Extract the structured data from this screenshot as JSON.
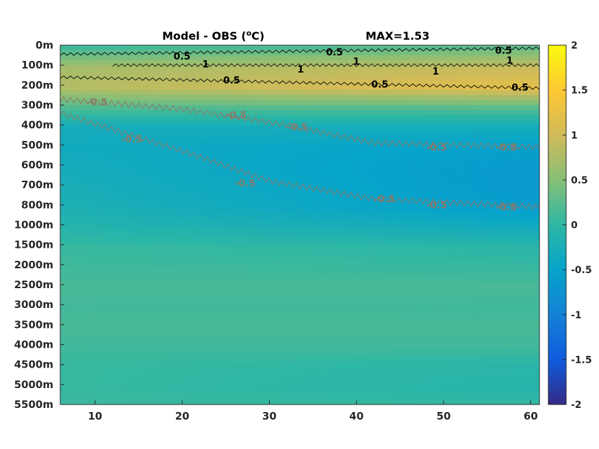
{
  "chart_data": {
    "type": "heatmap",
    "title": "Model - OBS (",
    "title_sup": "o",
    "title_unit": "C)",
    "max_label": "MAX=1.53",
    "xlabel": "",
    "ylabel": "",
    "x_ticks": [
      10,
      20,
      30,
      40,
      50,
      60
    ],
    "x_tick_labels": [
      "10",
      "20",
      "30",
      "40",
      "50",
      "60"
    ],
    "xlim": [
      6,
      61
    ],
    "y_tick_labels": [
      "0m",
      "100m",
      "200m",
      "300m",
      "400m",
      "500m",
      "600m",
      "700m",
      "800m",
      "1000m",
      "1500m",
      "2000m",
      "2500m",
      "3000m",
      "3500m",
      "4000m",
      "4500m",
      "5000m",
      "5500m"
    ],
    "colorbar": {
      "range": [
        -2,
        2
      ],
      "ticks": [
        2,
        1.5,
        1,
        0.5,
        0,
        -0.5,
        -1,
        -1.5,
        -2
      ],
      "tick_labels": [
        "2",
        "1.5",
        "1",
        "0.5",
        "0",
        "-0.5",
        "-1",
        "-1.5",
        "-2"
      ],
      "colormap": "parula"
    },
    "depth_profile_start": [
      0.1,
      0.7,
      0.8,
      0.2,
      -0.3,
      -0.35,
      -0.3,
      -0.25,
      -0.2,
      -0.1,
      0.05,
      0.1,
      0.15,
      0.12,
      0.15,
      0.1,
      0.05,
      0.05,
      0.08
    ],
    "depth_profile_end": [
      0.3,
      0.95,
      1.2,
      0.25,
      -0.3,
      -0.55,
      -0.65,
      -0.65,
      -0.6,
      -0.35,
      -0.05,
      0.05,
      0.15,
      0.1,
      0.15,
      0.1,
      -0.05,
      -0.1,
      0.05
    ],
    "contours": [
      {
        "level": 0.5,
        "color": "black",
        "points": [
          [
            6,
            0.45
          ],
          [
            61,
            0.15
          ]
        ]
      },
      {
        "level": 1,
        "color": "black",
        "points": [
          [
            12,
            1
          ],
          [
            61,
            1
          ]
        ]
      },
      {
        "level": 0.5,
        "color": "black",
        "points": [
          [
            6,
            1.6
          ],
          [
            61,
            2.15
          ]
        ]
      },
      {
        "level": -0.5,
        "color": "grey",
        "points": [
          [
            6,
            2.7
          ],
          [
            20,
            3.2
          ],
          [
            32,
            4.0
          ],
          [
            42,
            4.9
          ],
          [
            61,
            5.1
          ]
        ]
      },
      {
        "level": -0.5,
        "color": "grey",
        "points": [
          [
            6,
            3.4
          ],
          [
            20,
            5.3
          ],
          [
            30,
            6.8
          ],
          [
            42,
            7.7
          ],
          [
            61,
            8.1
          ]
        ]
      }
    ],
    "contour_labels": [
      {
        "text": "0.5",
        "x": 19,
        "y": 0.55,
        "color": "black"
      },
      {
        "text": "1",
        "x": 22.3,
        "y": 0.95,
        "color": "black"
      },
      {
        "text": "0.5",
        "x": 24.7,
        "y": 1.75,
        "color": "black"
      },
      {
        "text": "0.5",
        "x": 36.5,
        "y": 0.35,
        "color": "black"
      },
      {
        "text": "1",
        "x": 33.2,
        "y": 1.2,
        "color": "black"
      },
      {
        "text": "1",
        "x": 39.6,
        "y": 0.8,
        "color": "black"
      },
      {
        "text": "0.5",
        "x": 41.7,
        "y": 1.95,
        "color": "black"
      },
      {
        "text": "1",
        "x": 48.7,
        "y": 1.3,
        "color": "black"
      },
      {
        "text": "0.5",
        "x": 55.9,
        "y": 0.25,
        "color": "black"
      },
      {
        "text": "1",
        "x": 57.2,
        "y": 0.75,
        "color": "black"
      },
      {
        "text": "0.5",
        "x": 57.8,
        "y": 2.1,
        "color": "black"
      },
      {
        "text": "-0.5",
        "x": 9,
        "y": 2.85,
        "color": "grey"
      },
      {
        "text": "-0.5",
        "x": 25,
        "y": 3.5,
        "color": "grey"
      },
      {
        "text": "-0.5",
        "x": 32,
        "y": 4.1,
        "color": "grey"
      },
      {
        "text": "-0.5",
        "x": 48,
        "y": 5.1,
        "color": "grey"
      },
      {
        "text": "-0.5",
        "x": 56,
        "y": 5.1,
        "color": "grey"
      },
      {
        "text": "-0.5",
        "x": 13,
        "y": 4.7,
        "color": "grey"
      },
      {
        "text": "-0.5",
        "x": 26,
        "y": 6.9,
        "color": "grey"
      },
      {
        "text": "-0.5",
        "x": 42,
        "y": 7.7,
        "color": "grey"
      },
      {
        "text": "-0.5",
        "x": 48,
        "y": 8.0,
        "color": "grey"
      },
      {
        "text": "-0.5",
        "x": 56,
        "y": 8.1,
        "color": "grey"
      }
    ]
  }
}
